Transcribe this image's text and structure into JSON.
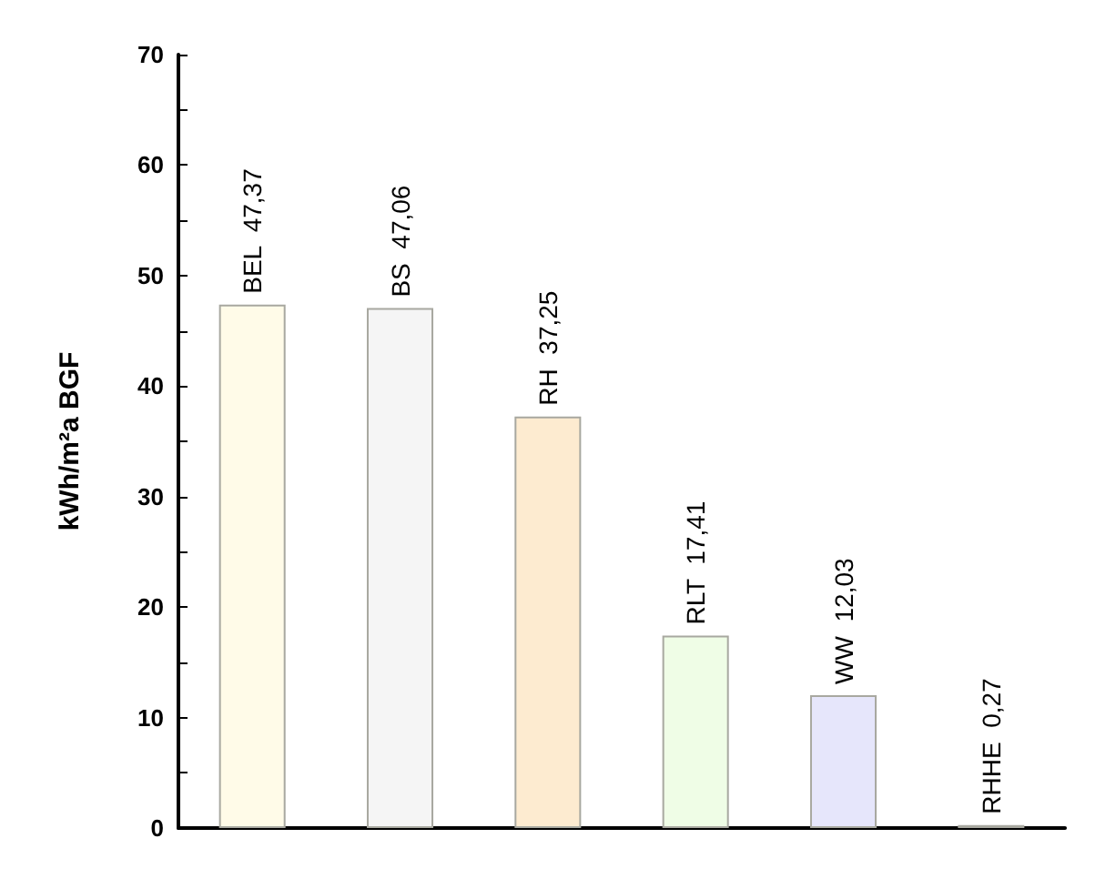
{
  "chart_data": {
    "type": "bar",
    "ylabel": "kWh/m²a BGF",
    "categories": [
      "BEL",
      "BS",
      "RH",
      "RLT",
      "WW",
      "RHHE"
    ],
    "values": [
      47.37,
      47.06,
      37.25,
      17.41,
      12.03,
      0.27
    ],
    "value_labels": [
      "47,37",
      "47,06",
      "37,25",
      "17,41",
      "12,03",
      "0,27"
    ],
    "colors": [
      "#fffbe8",
      "#f5f5f5",
      "#fdebd0",
      "#effde6",
      "#e6e6fb",
      "#fdf0dc"
    ],
    "ylim": [
      0,
      70
    ],
    "yticks": [
      0,
      {
        "value": 5,
        "label": null
      },
      10,
      {
        "value": 15,
        "label": null
      },
      20,
      {
        "value": 25,
        "label": null
      },
      30,
      {
        "value": 35,
        "label": null
      },
      40,
      {
        "value": 45,
        "label": null
      },
      50,
      {
        "value": 55,
        "label": null
      },
      60,
      {
        "value": 65,
        "label": null
      },
      70
    ],
    "tick_labels": "y",
    "grid": false
  }
}
